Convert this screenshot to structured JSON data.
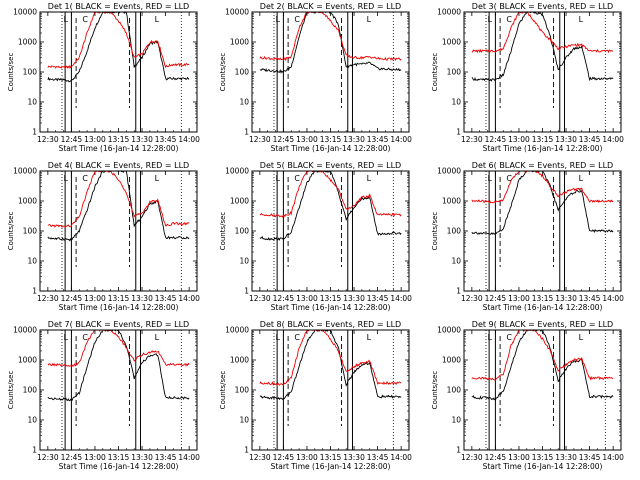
{
  "figure": {
    "background": "#ffffff",
    "series_colors": {
      "events": "#000000",
      "lld": "#ee0000"
    }
  },
  "chart_data": [
    {
      "type": "line",
      "title": "Det  1(   BLACK = Events,  RED = LLD",
      "ylabel": "Counts/sec",
      "xlabel": "Start Time (16-Jan-14 12:28:00)",
      "xticks": [
        "12:30",
        "12:45",
        "13:00",
        "13:15",
        "13:30",
        "13:45",
        "14:00"
      ],
      "yticks": [
        "1",
        "10",
        "100",
        "1000",
        "10000"
      ],
      "ylim": [
        1,
        10000
      ],
      "yscale": "log",
      "vlines_solid": [
        "12:41",
        "12:45",
        "13:26",
        "13:29"
      ],
      "vlines_dashed": [
        "12:48",
        "13:22"
      ],
      "vlines_dotted": [
        "12:39",
        "13:55"
      ],
      "markers": [
        "L",
        "C",
        "L"
      ],
      "x": [
        "12:30",
        "12:35",
        "12:40",
        "12:45",
        "12:50",
        "12:55",
        "13:00",
        "13:05",
        "13:10",
        "13:15",
        "13:20",
        "13:25",
        "13:30",
        "13:35",
        "13:40",
        "13:45",
        "13:50",
        "13:55",
        "14:00"
      ],
      "series": [
        {
          "values": [
            60,
            55,
            55,
            50,
            100,
            500,
            3000,
            10000,
            10000,
            10000,
            10000,
            150,
            300,
            900,
            1000,
            60,
            60,
            60,
            60
          ]
        },
        {
          "values": [
            150,
            150,
            140,
            150,
            300,
            2000,
            10000,
            10000,
            10000,
            5000,
            2000,
            300,
            400,
            1000,
            1100,
            150,
            180,
            170,
            180
          ]
        }
      ]
    },
    {
      "type": "line",
      "title": "Det  2(   BLACK = Events,  RED = LLD",
      "ylabel": "Counts/sec",
      "xlabel": "Start Time (16-Jan-14 12:28:00)",
      "xticks": [
        "12:30",
        "12:45",
        "13:00",
        "13:15",
        "13:30",
        "13:45",
        "14:00"
      ],
      "yticks": [
        "1",
        "10",
        "100",
        "1000",
        "10000"
      ],
      "ylim": [
        1,
        10000
      ],
      "yscale": "log",
      "vlines_solid": [
        "12:41",
        "12:45",
        "13:26",
        "13:29"
      ],
      "vlines_dashed": [
        "12:48",
        "13:22"
      ],
      "vlines_dotted": [
        "12:39",
        "13:55"
      ],
      "markers": [
        "L",
        "C",
        "L"
      ],
      "x": [
        "12:30",
        "12:35",
        "12:40",
        "12:45",
        "12:50",
        "12:55",
        "13:00",
        "13:05",
        "13:10",
        "13:15",
        "13:20",
        "13:25",
        "13:30",
        "13:35",
        "13:40",
        "13:45",
        "13:50",
        "13:55",
        "14:00"
      ],
      "series": [
        {
          "values": [
            120,
            115,
            110,
            100,
            150,
            1500,
            10000,
            10000,
            10000,
            10000,
            4000,
            150,
            180,
            180,
            200,
            130,
            125,
            120,
            120
          ]
        },
        {
          "values": [
            300,
            290,
            270,
            260,
            320,
            3000,
            10000,
            10000,
            10000,
            5000,
            2500,
            350,
            300,
            300,
            320,
            280,
            270,
            270,
            270
          ]
        }
      ]
    },
    {
      "type": "line",
      "title": "Det  3(   BLACK = Events,  RED = LLD",
      "ylabel": "Counts/sec",
      "xlabel": "Start Time (16-Jan-14 12:28:00)",
      "xticks": [
        "12:30",
        "12:45",
        "13:00",
        "13:15",
        "13:30",
        "13:45",
        "14:00"
      ],
      "yticks": [
        "1",
        "10",
        "100",
        "1000",
        "10000"
      ],
      "ylim": [
        1,
        10000
      ],
      "yscale": "log",
      "vlines_solid": [
        "12:41",
        "12:45",
        "13:26",
        "13:29"
      ],
      "vlines_dashed": [
        "12:48",
        "13:22"
      ],
      "vlines_dotted": [
        "12:39",
        "13:55"
      ],
      "markers": [
        "L",
        "C",
        "L"
      ],
      "x": [
        "12:30",
        "12:35",
        "12:40",
        "12:45",
        "12:50",
        "12:55",
        "13:00",
        "13:05",
        "13:10",
        "13:15",
        "13:20",
        "13:25",
        "13:30",
        "13:35",
        "13:40",
        "13:45",
        "13:50",
        "13:55",
        "14:00"
      ],
      "series": [
        {
          "values": [
            60,
            55,
            55,
            55,
            80,
            500,
            4000,
            10000,
            10000,
            8000,
            1500,
            120,
            300,
            600,
            700,
            60,
            60,
            60,
            60
          ]
        },
        {
          "values": [
            500,
            500,
            500,
            500,
            600,
            3000,
            10000,
            10000,
            5000,
            2000,
            1200,
            600,
            700,
            800,
            800,
            500,
            500,
            500,
            500
          ]
        }
      ]
    },
    {
      "type": "line",
      "title": "Det  4(   BLACK = Events,  RED = LLD",
      "ylabel": "Counts/sec",
      "xlabel": "Start Time (16-Jan-14 12:28:00)",
      "xticks": [
        "12:30",
        "12:45",
        "13:00",
        "13:15",
        "13:30",
        "13:45",
        "14:00"
      ],
      "yticks": [
        "1",
        "10",
        "100",
        "1000",
        "10000"
      ],
      "ylim": [
        1,
        10000
      ],
      "yscale": "log",
      "vlines_solid": [
        "12:41",
        "12:45",
        "13:26",
        "13:29"
      ],
      "vlines_dashed": [
        "12:48",
        "13:22"
      ],
      "vlines_dotted": [
        "12:39",
        "13:55"
      ],
      "markers": [
        "L",
        "C",
        "L"
      ],
      "x": [
        "12:30",
        "12:35",
        "12:40",
        "12:45",
        "12:50",
        "12:55",
        "13:00",
        "13:05",
        "13:10",
        "13:15",
        "13:20",
        "13:25",
        "13:30",
        "13:35",
        "13:40",
        "13:45",
        "13:50",
        "13:55",
        "14:00"
      ],
      "series": [
        {
          "values": [
            60,
            55,
            55,
            50,
            100,
            500,
            3000,
            10000,
            10000,
            10000,
            10000,
            150,
            300,
            800,
            1000,
            60,
            60,
            60,
            60
          ]
        },
        {
          "values": [
            150,
            150,
            140,
            150,
            300,
            2000,
            10000,
            10000,
            10000,
            5000,
            2000,
            300,
            400,
            900,
            1100,
            150,
            180,
            170,
            180
          ]
        }
      ]
    },
    {
      "type": "line",
      "title": "Det  5(   BLACK = Events,  RED = LLD",
      "ylabel": "Counts/sec",
      "xlabel": "Start Time (16-Jan-14 12:28:00)",
      "xticks": [
        "12:30",
        "12:45",
        "13:00",
        "13:15",
        "13:30",
        "13:45",
        "14:00"
      ],
      "yticks": [
        "1",
        "10",
        "100",
        "1000",
        "10000"
      ],
      "ylim": [
        1,
        10000
      ],
      "yscale": "log",
      "vlines_solid": [
        "12:41",
        "12:45",
        "13:26",
        "13:29"
      ],
      "vlines_dashed": [
        "12:48",
        "13:22"
      ],
      "vlines_dotted": [
        "12:39",
        "13:55"
      ],
      "markers": [
        "L",
        "C",
        "L"
      ],
      "x": [
        "12:30",
        "12:35",
        "12:40",
        "12:45",
        "12:50",
        "12:55",
        "13:00",
        "13:05",
        "13:10",
        "13:15",
        "13:20",
        "13:25",
        "13:30",
        "13:35",
        "13:40",
        "13:45",
        "13:50",
        "13:55",
        "14:00"
      ],
      "series": [
        {
          "values": [
            60,
            55,
            55,
            55,
            90,
            600,
            4000,
            10000,
            10000,
            10000,
            2000,
            250,
            600,
            1200,
            1300,
            80,
            80,
            85,
            85
          ]
        },
        {
          "values": [
            350,
            350,
            330,
            320,
            400,
            3000,
            10000,
            10000,
            10000,
            5000,
            2500,
            500,
            700,
            1300,
            1500,
            350,
            350,
            350,
            350
          ]
        }
      ]
    },
    {
      "type": "line",
      "title": "Det  6(   BLACK = Events,  RED = LLD",
      "ylabel": "Counts/sec",
      "xlabel": "Start Time (16-Jan-14 12:28:00)",
      "xticks": [
        "12:30",
        "12:45",
        "13:00",
        "13:15",
        "13:30",
        "13:45",
        "14:00"
      ],
      "yticks": [
        "1",
        "10",
        "100",
        "1000",
        "10000"
      ],
      "ylim": [
        1,
        10000
      ],
      "yscale": "log",
      "vlines_solid": [
        "12:41",
        "12:45",
        "13:26",
        "13:29"
      ],
      "vlines_dashed": [
        "12:48",
        "13:22"
      ],
      "vlines_dotted": [
        "12:39",
        "13:55"
      ],
      "markers": [
        "L",
        "C",
        "L"
      ],
      "x": [
        "12:30",
        "12:35",
        "12:40",
        "12:45",
        "12:50",
        "12:55",
        "13:00",
        "13:05",
        "13:10",
        "13:15",
        "13:20",
        "13:25",
        "13:30",
        "13:35",
        "13:40",
        "13:45",
        "13:50",
        "13:55",
        "14:00"
      ],
      "series": [
        {
          "values": [
            90,
            85,
            80,
            80,
            120,
            700,
            5000,
            10000,
            10000,
            10000,
            3000,
            500,
            1200,
            2000,
            2200,
            100,
            100,
            100,
            100
          ]
        },
        {
          "values": [
            1000,
            1000,
            950,
            900,
            1100,
            5000,
            10000,
            10000,
            10000,
            7000,
            3000,
            1500,
            2000,
            2500,
            2500,
            1000,
            1000,
            1000,
            1000
          ]
        }
      ]
    },
    {
      "type": "line",
      "title": "Det  7(   BLACK = Events,  RED = LLD",
      "ylabel": "Counts/sec",
      "xlabel": "Start Time (16-Jan-14 12:28:00)",
      "xticks": [
        "12:30",
        "12:45",
        "13:00",
        "13:15",
        "13:30",
        "13:45",
        "14:00"
      ],
      "yticks": [
        "1",
        "10",
        "100",
        "1000",
        "10000"
      ],
      "ylim": [
        1,
        10000
      ],
      "yscale": "log",
      "vlines_solid": [
        "12:41",
        "12:45",
        "13:26",
        "13:29"
      ],
      "vlines_dashed": [
        "12:48",
        "13:22"
      ],
      "vlines_dotted": [
        "12:39",
        "13:55"
      ],
      "markers": [
        "L",
        "C",
        "L"
      ],
      "x": [
        "12:30",
        "12:35",
        "12:40",
        "12:45",
        "12:50",
        "12:55",
        "13:00",
        "13:05",
        "13:10",
        "13:15",
        "13:20",
        "13:25",
        "13:30",
        "13:35",
        "13:40",
        "13:45",
        "13:50",
        "13:55",
        "14:00"
      ],
      "series": [
        {
          "values": [
            55,
            50,
            50,
            45,
            80,
            600,
            4000,
            10000,
            10000,
            10000,
            3000,
            250,
            800,
            1400,
            1500,
            55,
            55,
            55,
            55
          ]
        },
        {
          "values": [
            700,
            700,
            650,
            600,
            800,
            4000,
            10000,
            10000,
            10000,
            6000,
            2500,
            1000,
            1500,
            1800,
            2000,
            700,
            700,
            700,
            700
          ]
        }
      ]
    },
    {
      "type": "line",
      "title": "Det  8(   BLACK = Events,  RED = LLD",
      "ylabel": "Counts/sec",
      "xlabel": "Start Time (16-Jan-14 12:28:00)",
      "xticks": [
        "12:30",
        "12:45",
        "13:00",
        "13:15",
        "13:30",
        "13:45",
        "14:00"
      ],
      "yticks": [
        "1",
        "10",
        "100",
        "1000",
        "10000"
      ],
      "ylim": [
        1,
        10000
      ],
      "yscale": "log",
      "vlines_solid": [
        "12:41",
        "12:45",
        "13:26",
        "13:29"
      ],
      "vlines_dashed": [
        "12:48",
        "13:22"
      ],
      "vlines_dotted": [
        "12:39",
        "13:55"
      ],
      "markers": [
        "L",
        "C",
        "L"
      ],
      "x": [
        "12:30",
        "12:35",
        "12:40",
        "12:45",
        "12:50",
        "12:55",
        "13:00",
        "13:05",
        "13:10",
        "13:15",
        "13:20",
        "13:25",
        "13:30",
        "13:35",
        "13:40",
        "13:45",
        "13:50",
        "13:55",
        "14:00"
      ],
      "series": [
        {
          "values": [
            60,
            55,
            55,
            50,
            90,
            600,
            4000,
            10000,
            10000,
            10000,
            2500,
            150,
            400,
            700,
            800,
            60,
            60,
            60,
            60
          ]
        },
        {
          "values": [
            170,
            170,
            160,
            150,
            250,
            2500,
            10000,
            10000,
            10000,
            5000,
            2000,
            400,
            600,
            800,
            900,
            170,
            170,
            170,
            170
          ]
        }
      ]
    },
    {
      "type": "line",
      "title": "Det  9(   BLACK = Events,  RED = LLD",
      "ylabel": "Counts/sec",
      "xlabel": "Start Time (16-Jan-14 12:28:00)",
      "xticks": [
        "12:30",
        "12:45",
        "13:00",
        "13:15",
        "13:30",
        "13:45",
        "14:00"
      ],
      "yticks": [
        "1",
        "10",
        "100",
        "1000",
        "10000"
      ],
      "ylim": [
        1,
        10000
      ],
      "yscale": "log",
      "vlines_solid": [
        "12:41",
        "12:45",
        "13:26",
        "13:29"
      ],
      "vlines_dashed": [
        "12:48",
        "13:22"
      ],
      "vlines_dotted": [
        "12:39",
        "13:55"
      ],
      "markers": [
        "L",
        "C",
        "L"
      ],
      "x": [
        "12:30",
        "12:35",
        "12:40",
        "12:45",
        "12:50",
        "12:55",
        "13:00",
        "13:05",
        "13:10",
        "13:15",
        "13:20",
        "13:25",
        "13:30",
        "13:35",
        "13:40",
        "13:45",
        "13:50",
        "13:55",
        "14:00"
      ],
      "series": [
        {
          "values": [
            60,
            55,
            55,
            50,
            90,
            600,
            4000,
            10000,
            10000,
            10000,
            2500,
            200,
            500,
            900,
            1000,
            60,
            60,
            60,
            60
          ]
        },
        {
          "values": [
            250,
            250,
            240,
            230,
            330,
            3000,
            10000,
            10000,
            10000,
            5000,
            2000,
            450,
            700,
            1000,
            1100,
            250,
            250,
            250,
            250
          ]
        }
      ]
    }
  ]
}
